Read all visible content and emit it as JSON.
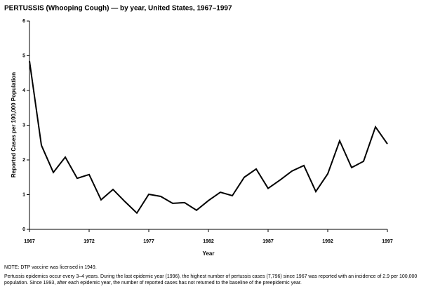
{
  "chart_data": {
    "type": "line",
    "title": "PERTUSSIS (Whooping Cough) — by year, United States, 1967–1997",
    "x_label": "Year",
    "y_label": "Reported Cases per 100,000 Population",
    "x": [
      1967,
      1968,
      1969,
      1970,
      1971,
      1972,
      1973,
      1974,
      1975,
      1976,
      1977,
      1978,
      1979,
      1980,
      1981,
      1982,
      1983,
      1984,
      1985,
      1986,
      1987,
      1988,
      1989,
      1990,
      1991,
      1992,
      1993,
      1994,
      1995,
      1996,
      1997
    ],
    "series": [
      {
        "name": "Pertussis",
        "color": "#000000",
        "values": [
          4.85,
          2.42,
          1.64,
          2.08,
          1.47,
          1.58,
          0.85,
          1.15,
          0.8,
          0.47,
          1.01,
          0.95,
          0.75,
          0.77,
          0.55,
          0.83,
          1.07,
          0.97,
          1.5,
          1.74,
          1.18,
          1.42,
          1.68,
          1.84,
          1.09,
          1.6,
          2.55,
          1.78,
          1.96,
          2.95,
          2.46
        ]
      }
    ],
    "xlim": [
      1967,
      1997
    ],
    "xticks": [
      1967,
      1972,
      1977,
      1982,
      1987,
      1992,
      1997
    ],
    "ylim": [
      0,
      6
    ],
    "yticks": [
      0,
      1,
      2,
      3,
      4,
      5,
      6
    ],
    "annotations": [
      "NOTE: DTP vaccine was licensed in 1949.",
      "Pertussis epidemics occur every 3–4 years. During the last epidemic year (1996), the highest number of pertussis cases (7,796) since 1967 was reported with an incidence of 2.9 per 100,000 population. Since 1993, after each epidemic year, the number of reported cases has not returned to the baseline of the preepidemic year."
    ]
  }
}
